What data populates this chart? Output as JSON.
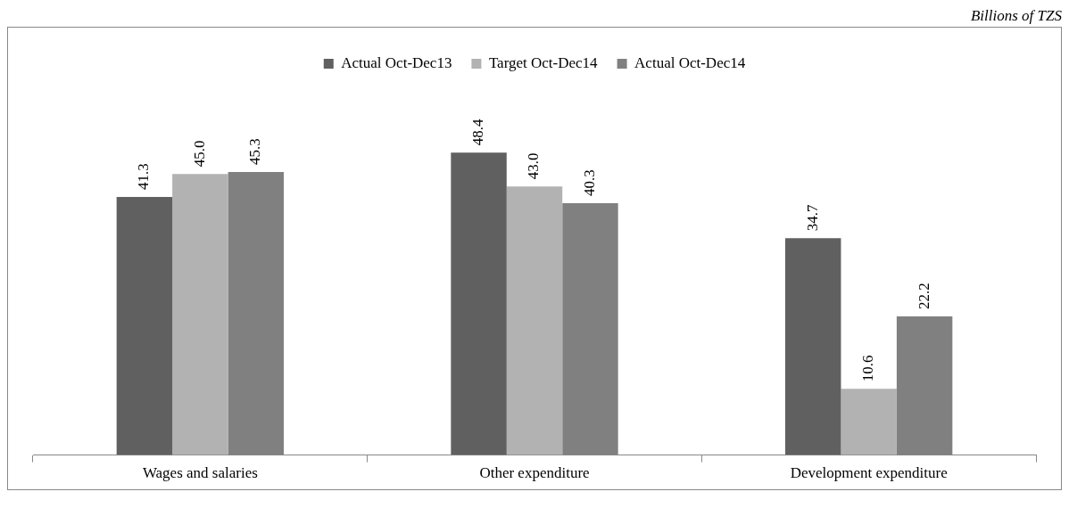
{
  "chart_data": {
    "type": "bar",
    "annotations": [
      "Billions of TZS"
    ],
    "categories": [
      "Wages and salaries",
      "Other expenditure",
      "Development expenditure"
    ],
    "series": [
      {
        "name": "Actual Oct-Dec13",
        "color": "#606060",
        "values": [
          41.3,
          48.4,
          34.7
        ],
        "value_labels": [
          "41.3",
          "48.4",
          "34.7"
        ]
      },
      {
        "name": "Target Oct-Dec14",
        "color": "#b2b2b2",
        "values": [
          45.0,
          43.0,
          10.6
        ],
        "value_labels": [
          "45.0",
          "43.0",
          "10.6"
        ]
      },
      {
        "name": "Actual Oct-Dec14",
        "color": "#808080",
        "values": [
          45.3,
          40.3,
          22.2
        ],
        "value_labels": [
          "45.3",
          "40.3",
          "22.2"
        ]
      }
    ],
    "legend": "top",
    "grid": false
  }
}
